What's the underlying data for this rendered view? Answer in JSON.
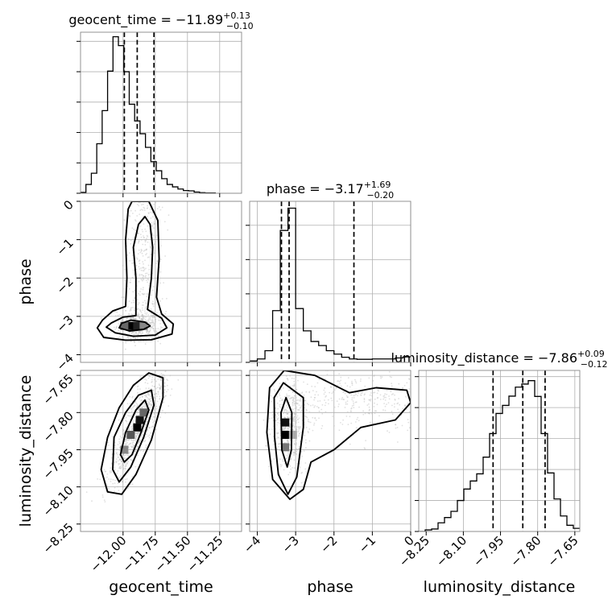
{
  "chart_data": [
    {
      "type": "histogram",
      "parameter": "geocent_time",
      "title_name": "geocent_time",
      "title_value": "−11.89",
      "title_plus": "+0.13",
      "title_minus": "−0.10",
      "xlim": [
        -12.33,
        -11.08
      ],
      "bin_edges": [
        -12.33,
        -12.288,
        -12.246,
        -12.204,
        -12.162,
        -12.12,
        -12.078,
        -12.036,
        -11.994,
        -11.952,
        -11.91,
        -11.868,
        -11.826,
        -11.784,
        -11.742,
        -11.7,
        -11.658,
        -11.616,
        -11.574,
        -11.532,
        -11.49,
        -11.448,
        -11.406,
        -11.364,
        -11.322,
        -11.28
      ],
      "counts": [
        0.3,
        2.9,
        6.6,
        16.3,
        27.2,
        40.2,
        51.5,
        48.6,
        40.0,
        29.3,
        23.8,
        19.6,
        15.1,
        10.4,
        7.4,
        4.8,
        2.9,
        2.1,
        1.4,
        0.9,
        0.8,
        0.4,
        0.2,
        0.1,
        0.1
      ],
      "ylim": [
        0,
        53
      ],
      "quantiles": [
        -11.99,
        -11.89,
        -11.76
      ],
      "yticks": [
        0,
        10,
        20,
        30,
        40,
        50
      ]
    },
    {
      "type": "histogram",
      "parameter": "phase",
      "title_name": "phase",
      "title_value": "−3.17",
      "title_plus": "+1.69",
      "title_minus": "−0.20",
      "xlim": [
        -4.2,
        0
      ],
      "bin_edges": [
        -4.2,
        -4.0,
        -3.8,
        -3.6,
        -3.4,
        -3.2,
        -3.0,
        -2.8,
        -2.6,
        -2.4,
        -2.2,
        -2.0,
        -1.8,
        -1.6,
        -1.4,
        -1.2,
        -1.0,
        -0.8,
        -0.6,
        -0.4,
        -0.2,
        0
      ],
      "counts": [
        0.4,
        1.0,
        3.4,
        15.1,
        38.5,
        45.0,
        15.7,
        9.2,
        6.1,
        4.9,
        3.4,
        2.4,
        1.5,
        1.0,
        0.9,
        0.9,
        1.0,
        1.0,
        1.0,
        1.3,
        1.6
      ],
      "ylim": [
        0,
        47
      ],
      "quantiles": [
        -3.37,
        -3.17,
        -1.48
      ],
      "yticks": [
        0,
        10,
        20,
        30,
        40
      ]
    },
    {
      "type": "histogram",
      "parameter": "luminosity_distance",
      "title_name": "luminosity_distance",
      "title_value": "−7.86",
      "title_plus": "+0.09",
      "title_minus": "−0.12",
      "xlim": [
        -8.28,
        -7.63
      ],
      "bin_edges": [
        -8.28,
        -8.254,
        -8.228,
        -8.202,
        -8.176,
        -8.15,
        -8.124,
        -8.098,
        -8.072,
        -8.046,
        -8.02,
        -7.994,
        -7.968,
        -7.942,
        -7.916,
        -7.89,
        -7.864,
        -7.838,
        -7.812,
        -7.786,
        -7.76,
        -7.734,
        -7.708,
        -7.682,
        -7.656,
        -7.63
      ],
      "counts": [
        0,
        0.5,
        0.8,
        2.8,
        4.5,
        6.5,
        10.0,
        13.7,
        16.3,
        18.6,
        24.0,
        31.6,
        38.1,
        40.7,
        43.7,
        46.6,
        47.6,
        48.7,
        43.6,
        31.6,
        18.9,
        10.5,
        5.0,
        2.0,
        1.0
      ],
      "ylim": [
        0,
        52
      ],
      "quantiles": [
        -7.98,
        -7.86,
        -7.77
      ],
      "yticks": [
        0,
        10,
        20,
        30,
        40,
        50
      ]
    },
    {
      "type": "scatter",
      "x_param": "geocent_time",
      "y_param": "phase",
      "xlim": [
        -12.33,
        -11.08
      ],
      "ylim": [
        -4.2,
        0
      ],
      "cluster_center": [
        -11.89,
        -3.25
      ],
      "contours": [
        {
          "level": "inner",
          "points": [
            [
              -12.01,
              -3.18
            ],
            [
              -11.94,
              -3.1
            ],
            [
              -11.83,
              -3.15
            ],
            [
              -11.79,
              -3.25
            ],
            [
              -11.84,
              -3.34
            ],
            [
              -11.95,
              -3.38
            ],
            [
              -12.03,
              -3.3
            ]
          ]
        },
        {
          "level": "middle",
          "points": [
            [
              -12.09,
              -3.17
            ],
            [
              -12.0,
              -3.02
            ],
            [
              -11.9,
              -2.98
            ],
            [
              -11.9,
              -2.0
            ],
            [
              -11.92,
              -1.2
            ],
            [
              -11.88,
              -0.6
            ],
            [
              -11.83,
              -0.4
            ],
            [
              -11.79,
              -0.6
            ],
            [
              -11.77,
              -1.2
            ],
            [
              -11.78,
              -2.0
            ],
            [
              -11.81,
              -2.82
            ],
            [
              -11.7,
              -3.05
            ],
            [
              -11.66,
              -3.3
            ],
            [
              -11.75,
              -3.49
            ],
            [
              -11.92,
              -3.52
            ],
            [
              -12.06,
              -3.43
            ],
            [
              -12.13,
              -3.28
            ]
          ]
        },
        {
          "level": "outer",
          "points": [
            [
              -12.16,
              -3.1
            ],
            [
              -12.08,
              -2.86
            ],
            [
              -11.98,
              -2.74
            ],
            [
              -11.97,
              -2.0
            ],
            [
              -11.98,
              -1.0
            ],
            [
              -11.96,
              -0.2
            ],
            [
              -11.93,
              0.0
            ],
            [
              -11.8,
              0.0
            ],
            [
              -11.73,
              -0.5
            ],
            [
              -11.72,
              -1.5
            ],
            [
              -11.74,
              -2.5
            ],
            [
              -11.7,
              -2.94
            ],
            [
              -11.61,
              -3.2
            ],
            [
              -11.62,
              -3.46
            ],
            [
              -11.78,
              -3.61
            ],
            [
              -11.98,
              -3.62
            ],
            [
              -12.15,
              -3.55
            ],
            [
              -12.2,
              -3.3
            ]
          ]
        }
      ],
      "pixels": [
        {
          "x": -11.94,
          "y": -3.25,
          "shade": "#000000"
        },
        {
          "x": -11.89,
          "y": -3.25,
          "shade": "#222222"
        },
        {
          "x": -11.99,
          "y": -3.25,
          "shade": "#666666"
        },
        {
          "x": -11.84,
          "y": -3.25,
          "shade": "#888888"
        }
      ]
    },
    {
      "type": "scatter",
      "x_param": "geocent_time",
      "y_param": "luminosity_distance",
      "xlim": [
        -12.33,
        -11.08
      ],
      "ylim": [
        -8.28,
        -7.63
      ],
      "cluster_center": [
        -11.89,
        -7.86
      ],
      "contours": [
        {
          "level": "inner",
          "points": [
            [
              -12.02,
              -7.97
            ],
            [
              -11.98,
              -7.88
            ],
            [
              -11.9,
              -7.79
            ],
            [
              -11.83,
              -7.75
            ],
            [
              -11.8,
              -7.79
            ],
            [
              -11.86,
              -7.88
            ],
            [
              -11.93,
              -7.97
            ],
            [
              -11.99,
              -8.0
            ]
          ]
        },
        {
          "level": "middle",
          "points": [
            [
              -12.08,
              -8.03
            ],
            [
              -12.07,
              -7.9
            ],
            [
              -11.98,
              -7.8
            ],
            [
              -11.88,
              -7.73
            ],
            [
              -11.78,
              -7.71
            ],
            [
              -11.76,
              -7.77
            ],
            [
              -11.84,
              -7.9
            ],
            [
              -11.94,
              -8.02
            ],
            [
              -12.03,
              -8.08
            ]
          ]
        },
        {
          "level": "outer",
          "points": [
            [
              -12.17,
              -8.03
            ],
            [
              -12.12,
              -7.9
            ],
            [
              -12.03,
              -7.78
            ],
            [
              -11.92,
              -7.69
            ],
            [
              -11.8,
              -7.64
            ],
            [
              -11.69,
              -7.66
            ],
            [
              -11.69,
              -7.74
            ],
            [
              -11.78,
              -7.91
            ],
            [
              -11.9,
              -8.05
            ],
            [
              -12.01,
              -8.13
            ],
            [
              -12.12,
              -8.12
            ]
          ]
        }
      ],
      "pixels": [
        {
          "x": -11.89,
          "y": -7.86,
          "shade": "#000000"
        },
        {
          "x": -11.87,
          "y": -7.83,
          "shade": "#111111"
        },
        {
          "x": -11.94,
          "y": -7.89,
          "shade": "#555555"
        },
        {
          "x": -11.84,
          "y": -7.8,
          "shade": "#666666"
        },
        {
          "x": -11.99,
          "y": -7.95,
          "shade": "#888888"
        }
      ]
    },
    {
      "type": "scatter",
      "x_param": "phase",
      "y_param": "luminosity_distance",
      "xlim": [
        -4.2,
        0
      ],
      "ylim": [
        -8.28,
        -7.63
      ],
      "cluster_center": [
        -3.17,
        -7.86
      ],
      "contours": [
        {
          "level": "inner",
          "points": [
            [
              -3.36,
              -7.95
            ],
            [
              -3.38,
              -7.8
            ],
            [
              -3.25,
              -7.74
            ],
            [
              -3.1,
              -7.8
            ],
            [
              -3.11,
              -7.95
            ],
            [
              -3.22,
              -8.02
            ]
          ]
        },
        {
          "level": "middle",
          "points": [
            [
              -3.55,
              -7.9
            ],
            [
              -3.56,
              -7.74
            ],
            [
              -3.32,
              -7.68
            ],
            [
              -2.8,
              -7.74
            ],
            [
              -2.8,
              -7.86
            ],
            [
              -2.97,
              -8.06
            ],
            [
              -3.2,
              -8.13
            ],
            [
              -3.45,
              -8.05
            ]
          ]
        },
        {
          "level": "outer",
          "points": [
            [
              -3.75,
              -7.88
            ],
            [
              -3.68,
              -7.7
            ],
            [
              -3.3,
              -7.63
            ],
            [
              -2.5,
              -7.65
            ],
            [
              -1.6,
              -7.72
            ],
            [
              -0.9,
              -7.7
            ],
            [
              -0.1,
              -7.71
            ],
            [
              0.0,
              -7.76
            ],
            [
              -0.4,
              -7.83
            ],
            [
              -1.3,
              -7.86
            ],
            [
              -2.0,
              -7.95
            ],
            [
              -2.6,
              -8.0
            ],
            [
              -2.8,
              -8.11
            ],
            [
              -3.15,
              -8.15
            ],
            [
              -3.6,
              -8.07
            ]
          ]
        }
      ],
      "pixels": [
        {
          "x": -3.27,
          "y": -7.89,
          "shade": "#000000"
        },
        {
          "x": -3.27,
          "y": -7.84,
          "shade": "#111111"
        },
        {
          "x": -3.27,
          "y": -7.94,
          "shade": "#777777"
        },
        {
          "x": -3.07,
          "y": -7.89,
          "shade": "#aaaaaa"
        }
      ]
    }
  ],
  "axes": {
    "geocent_time": {
      "label": "geocent_time",
      "ticks": [
        -12.0,
        -11.75,
        -11.5,
        -11.25
      ],
      "ticklabels": [
        "−12.00",
        "−11.75",
        "−11.50",
        "−11.25"
      ]
    },
    "phase": {
      "label": "phase",
      "ticks": [
        -4,
        -3,
        -2,
        -1,
        0
      ],
      "ticklabels": [
        "−4",
        "−3",
        "−2",
        "−1",
        "0"
      ]
    },
    "luminosity_distance": {
      "label": "luminosity_distance",
      "ticks": [
        -8.25,
        -8.1,
        -7.95,
        -7.8,
        -7.65
      ],
      "ticklabels": [
        "−8.25",
        "−8.10",
        "−7.95",
        "−7.80",
        "−7.65"
      ]
    }
  },
  "colors": {
    "line": "#000000",
    "grid": "#b0b0b0",
    "scatter": "#bbbbbb"
  }
}
